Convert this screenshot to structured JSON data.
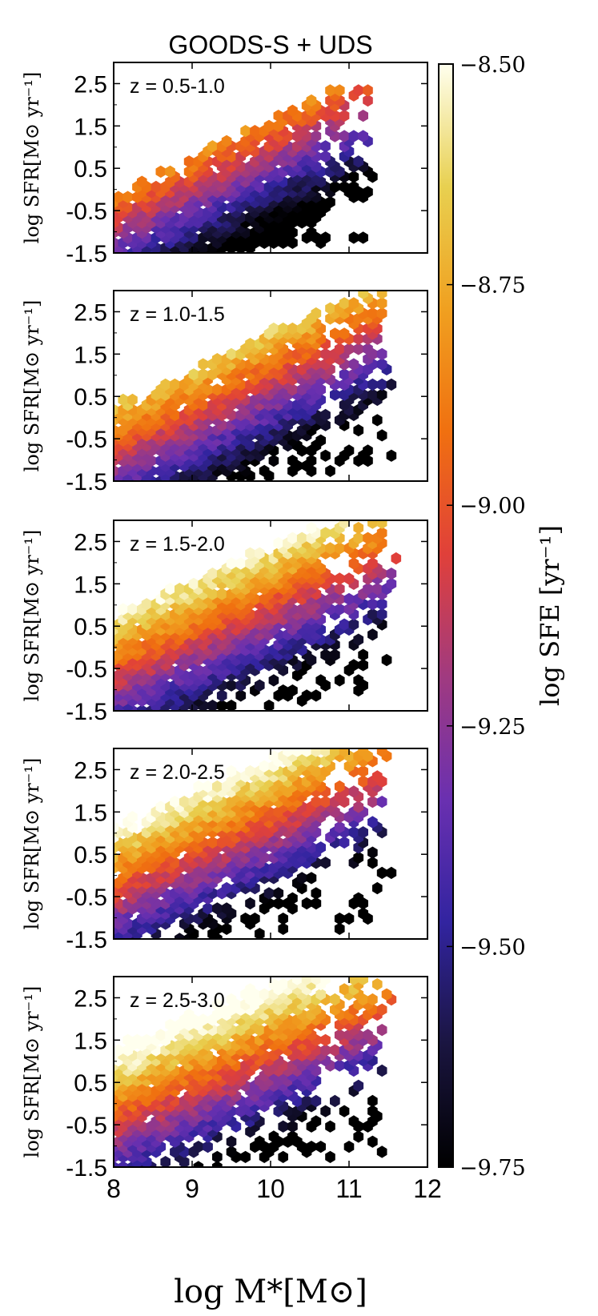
{
  "figure_title": "GOODS-S + UDS",
  "ylabel": "log SFR[M⊙ yr⁻¹]",
  "xlabel": "log M*[M⊙]",
  "chart_data": {
    "type": "heatmap",
    "subtype": "hexbin",
    "title": "GOODS-S + UDS",
    "xlabel": "log M*[M⊙]",
    "ylabel": "log SFR[M⊙ yr⁻¹]",
    "xlim": [
      8,
      12
    ],
    "ylim": [
      -1.5,
      3.0
    ],
    "x_ticks": [
      8,
      9,
      10,
      11,
      12
    ],
    "y_ticks": [
      -1.5,
      -0.5,
      0.5,
      1.5,
      2.5
    ],
    "y_tick_labels": [
      "-1.5",
      "-0.5",
      "0.5",
      "1.5",
      "2.5"
    ],
    "colorbar": {
      "label": "log SFE [yr⁻¹]",
      "range": [
        -9.75,
        -8.5
      ],
      "ticks": [
        "−8.50",
        "−8.75",
        "−9.00",
        "−9.25",
        "−9.50",
        "−9.75"
      ],
      "colormap": [
        "#000000",
        "#1a1540",
        "#3224a0",
        "#6a30b0",
        "#a03a80",
        "#e0403a",
        "#f07010",
        "#f0a020",
        "#e8d050",
        "#ffffee"
      ]
    },
    "panels": [
      {
        "label": "z = 0.5-1.0",
        "ms_slope": 0.9,
        "ms_int": -8.65,
        "ms_sfe": -9.35,
        "fill": 0.55
      },
      {
        "label": "z = 1.0-1.5",
        "ms_slope": 0.85,
        "ms_int": -7.75,
        "ms_sfe": -9.12,
        "fill": 0.75
      },
      {
        "label": "z = 1.5-2.0",
        "ms_slope": 0.8,
        "ms_int": -6.85,
        "ms_sfe": -8.98,
        "fill": 0.75
      },
      {
        "label": "z = 2.0-2.5",
        "ms_slope": 0.8,
        "ms_int": -6.45,
        "ms_sfe": -8.92,
        "fill": 0.72
      },
      {
        "label": "z = 2.5-3.0",
        "ms_slope": 0.75,
        "ms_int": -5.95,
        "ms_sfe": -8.86,
        "fill": 0.7
      }
    ]
  }
}
